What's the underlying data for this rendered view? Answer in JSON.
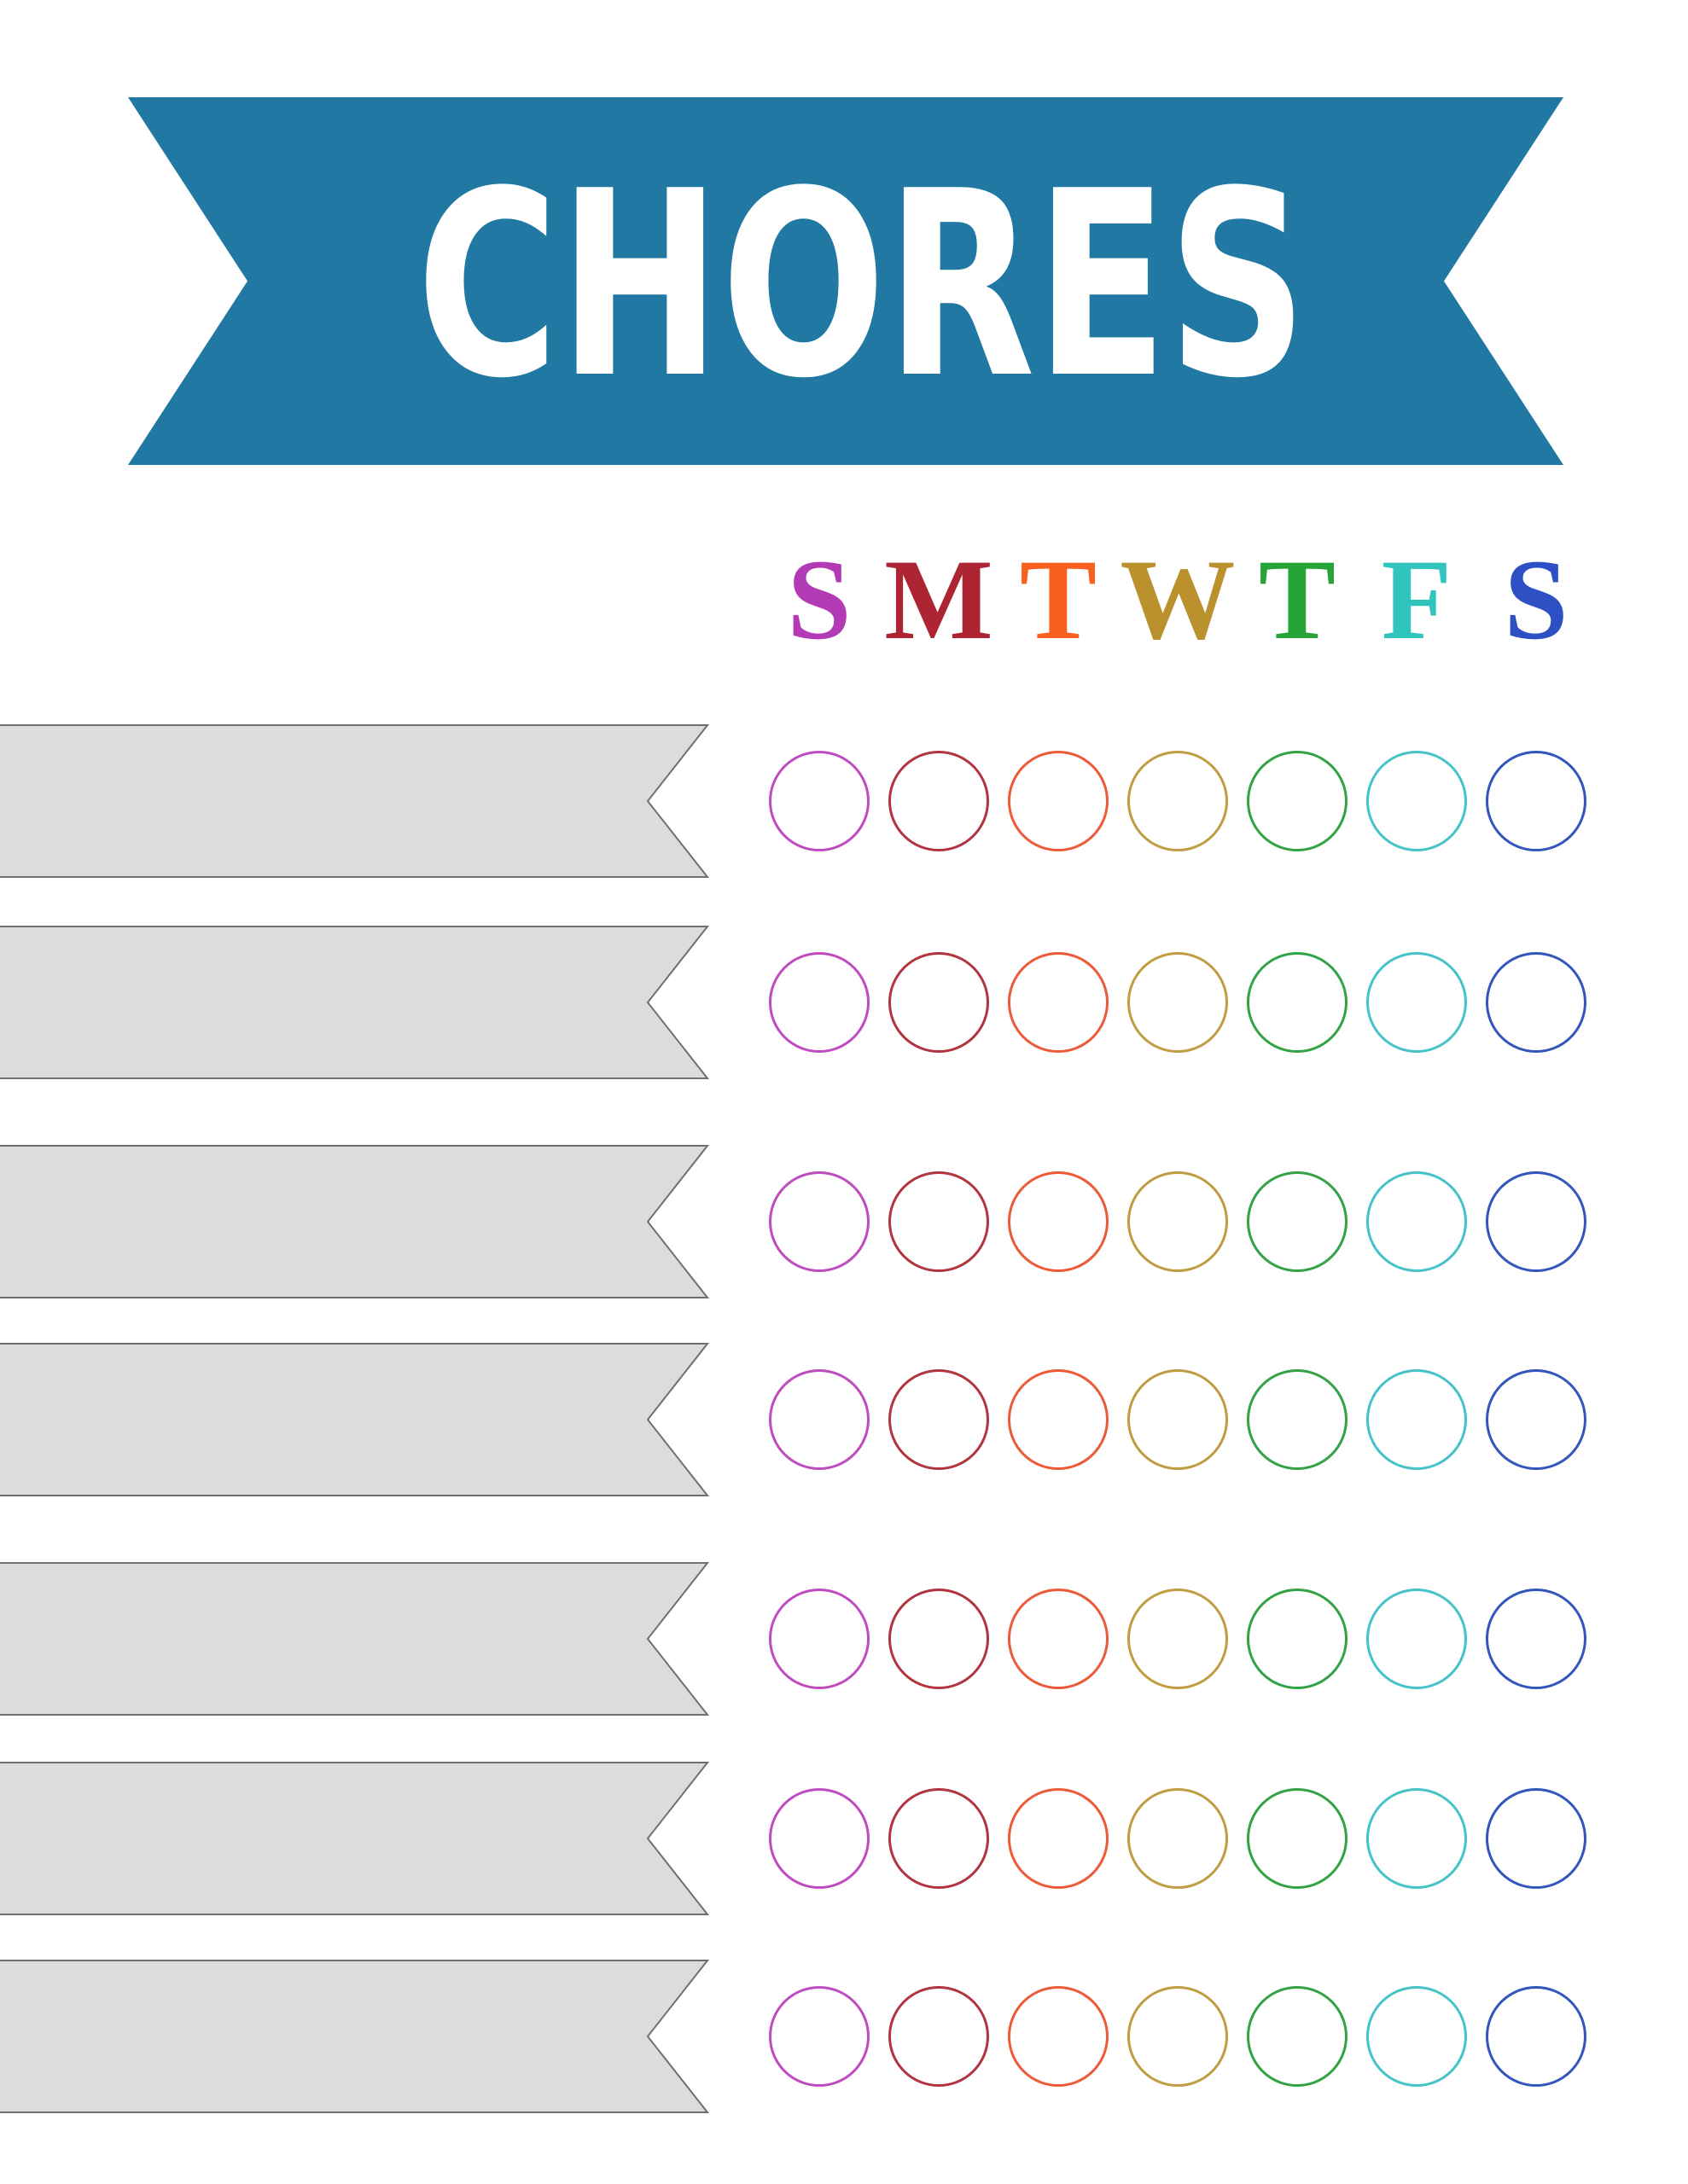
{
  "page": {
    "background_color": "#ffffff"
  },
  "banner": {
    "text": "CHORES",
    "background_color": "#2179a3",
    "text_color": "#ffffff"
  },
  "week_header": {
    "days": [
      {
        "letter": "S",
        "day": "sunday",
        "color": "#b23ab5"
      },
      {
        "letter": "M",
        "day": "monday",
        "color": "#ad2433"
      },
      {
        "letter": "T",
        "day": "tuesday",
        "color": "#f95f1e"
      },
      {
        "letter": "W",
        "day": "wednesday",
        "color": "#ba912d"
      },
      {
        "letter": "T",
        "day": "thursday",
        "color": "#27a437"
      },
      {
        "letter": "F",
        "day": "friday",
        "color": "#30c4bf"
      },
      {
        "letter": "S",
        "day": "saturday",
        "color": "#2d51c4"
      }
    ]
  },
  "chore_rows": [
    {
      "label": ""
    },
    {
      "label": ""
    },
    {
      "label": ""
    },
    {
      "label": ""
    },
    {
      "label": ""
    },
    {
      "label": ""
    },
    {
      "label": ""
    }
  ],
  "ribbon_style": {
    "fill_color": "#dcdcdc",
    "border_color": "#6f6f6f"
  },
  "circle_grid": {
    "rows": 7,
    "columns": 7,
    "column_colors": [
      "#bf4cbf",
      "#b13440",
      "#ec5a38",
      "#c09c42",
      "#32a244",
      "#45c3c8",
      "#3356bd"
    ]
  }
}
